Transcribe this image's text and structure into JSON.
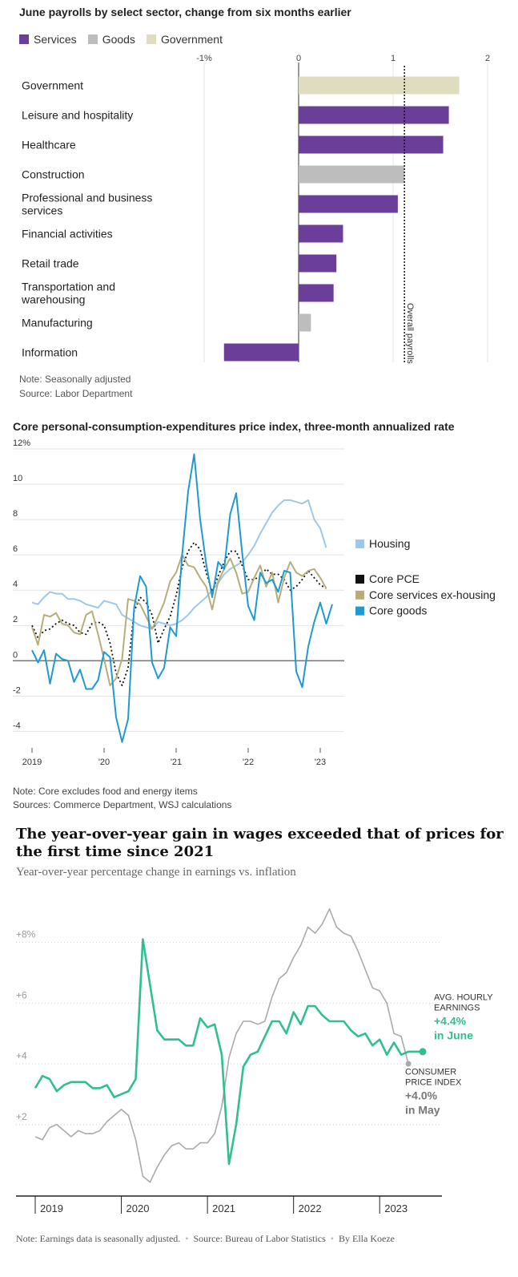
{
  "chart_data": [
    {
      "type": "bar",
      "title": "June payrolls by select sector, change from six months earlier",
      "legend": [
        {
          "name": "Services",
          "color": "#6b3f99"
        },
        {
          "name": "Goods",
          "color": "#bdbdbd"
        },
        {
          "name": "Government",
          "color": "#e0dcbf"
        }
      ],
      "x_ticks": [
        "-1%",
        "0",
        "1",
        "2"
      ],
      "xlim": [
        -1,
        2
      ],
      "categories": [
        "Government",
        "Leisure and hospitality",
        "Healthcare",
        "Construction",
        "Professional and business services",
        "Financial activities",
        "Retail trade",
        "Transportation and warehousing",
        "Manufacturing",
        "Information"
      ],
      "values": [
        1.7,
        1.59,
        1.53,
        1.12,
        1.05,
        0.47,
        0.4,
        0.37,
        0.13,
        -0.79
      ],
      "groups": [
        "Government",
        "Services",
        "Services",
        "Goods",
        "Services",
        "Services",
        "Services",
        "Services",
        "Goods",
        "Services"
      ],
      "reference_line": {
        "label": "Overall payrolls",
        "value": 1.12
      },
      "notes": [
        "Note: Seasonally adjusted",
        "Source: Labor Department"
      ]
    },
    {
      "type": "line",
      "title": "Core personal-consumption-expenditures price index, three-month annualized rate",
      "y_ticks": [
        "12%",
        "10",
        "8",
        "6",
        "4",
        "2",
        "0",
        "-2",
        "-4"
      ],
      "ylim": [
        -4.8,
        12
      ],
      "x_ticks": [
        "2019",
        "'20",
        "'21",
        "'22",
        "'23"
      ],
      "x_range": [
        "2019-01",
        "2023-05"
      ],
      "series": [
        {
          "name": "Housing",
          "color": "#9cc9e8",
          "style": "solid",
          "values": [
            3.3,
            3.2,
            3.6,
            3.9,
            3.8,
            3.8,
            3.5,
            3.5,
            3.4,
            3.2,
            3.1,
            3.0,
            3.4,
            3.3,
            3.2,
            2.6,
            2.4,
            2.2,
            2.0,
            1.9,
            1.8,
            2.2,
            2.1,
            2.0,
            2.1,
            2.3,
            2.6,
            3.0,
            3.3,
            3.6,
            4.0,
            4.4,
            4.9,
            5.2,
            5.4,
            5.6,
            6.0,
            6.5,
            7.2,
            7.8,
            8.4,
            8.8,
            9.1,
            9.1,
            9.0,
            8.9,
            9.1,
            8.0,
            7.5,
            6.4
          ]
        },
        {
          "name": "Core PCE",
          "color": "#111111",
          "style": "dotted",
          "values": [
            2.0,
            1.3,
            1.7,
            1.8,
            2.1,
            2.3,
            2.1,
            2.0,
            1.6,
            1.5,
            2.1,
            2.2,
            2.0,
            1.0,
            -0.7,
            -1.4,
            -0.4,
            2.8,
            3.6,
            3.3,
            2.6,
            1.0,
            1.8,
            2.5,
            3.7,
            5.3,
            6.2,
            6.7,
            6.3,
            5.0,
            3.9,
            4.8,
            5.6,
            6.2,
            6.2,
            5.4,
            4.6,
            4.6,
            4.8,
            5.2,
            4.9,
            4.9,
            4.6,
            4.0,
            4.2,
            4.6,
            5.1,
            4.7,
            4.3,
            4.1
          ]
        },
        {
          "name": "Core services ex-housing",
          "color": "#b5ae7a",
          "style": "solid",
          "values": [
            1.9,
            0.9,
            2.6,
            2.5,
            2.7,
            2.1,
            2.0,
            1.6,
            1.5,
            2.6,
            2.8,
            1.5,
            0.1,
            -1.4,
            -1.0,
            0.1,
            3.5,
            3.4,
            3.2,
            2.5,
            1.8,
            2.5,
            3.3,
            4.5,
            5.0,
            6.0,
            5.4,
            5.3,
            4.7,
            4.2,
            2.9,
            4.5,
            5.2,
            5.8,
            5.0,
            3.8,
            3.9,
            4.7,
            5.4,
            4.2,
            5.0,
            3.3,
            4.7,
            5.6,
            5.0,
            4.8,
            5.1,
            5.2,
            4.7,
            4.1
          ]
        },
        {
          "name": "Core goods",
          "color": "#1f9ad0",
          "style": "solid",
          "values": [
            0.6,
            -0.1,
            0.6,
            -1.3,
            0.4,
            0.1,
            0.0,
            -1.2,
            -0.5,
            -1.6,
            -1.6,
            -1.1,
            0.5,
            0.2,
            -3.2,
            -4.6,
            -3.3,
            3.0,
            4.8,
            4.2,
            -0.1,
            -1.0,
            -0.4,
            1.9,
            1.4,
            6.0,
            9.6,
            11.7,
            8.0,
            5.5,
            3.6,
            5.6,
            5.2,
            8.3,
            9.5,
            6.1,
            3.1,
            2.3,
            5.0,
            4.4,
            4.6,
            3.9,
            5.1,
            5.0,
            -0.6,
            -1.5,
            0.8,
            2.2,
            3.3,
            2.1,
            3.2
          ]
        }
      ],
      "notes": [
        "Note: Core excludes food and energy items",
        "Sources: Commerce Department, WSJ calculations"
      ]
    },
    {
      "type": "line",
      "title": "The year-over-year gain in wages exceeded that of prices for the first time since 2021",
      "subtitle": "Year-over-year percentage change in earnings vs. inflation",
      "y_ticks": [
        "+8%",
        "+6",
        "+4",
        "+2"
      ],
      "ylim": [
        -0.3,
        9.2
      ],
      "x_ticks": [
        "2019",
        "2020",
        "2021",
        "2022",
        "2023"
      ],
      "x_range": [
        "2019-01",
        "2023-06"
      ],
      "series": [
        {
          "name": "Avg. hourly earnings",
          "color": "#2fbf90",
          "values": [
            3.2,
            3.6,
            3.5,
            3.1,
            3.3,
            3.4,
            3.4,
            3.4,
            3.2,
            3.2,
            3.3,
            2.9,
            3.0,
            3.1,
            3.5,
            8.1,
            6.6,
            5.1,
            4.8,
            4.8,
            4.8,
            4.6,
            4.6,
            5.5,
            5.2,
            5.3,
            4.3,
            0.7,
            2.0,
            3.9,
            4.3,
            4.4,
            4.9,
            5.4,
            5.4,
            5.0,
            5.7,
            5.3,
            5.9,
            5.9,
            5.6,
            5.4,
            5.4,
            5.4,
            5.1,
            4.9,
            5.0,
            4.6,
            4.8,
            4.3,
            4.7,
            4.3,
            4.4,
            4.4,
            4.4
          ]
        },
        {
          "name": "Consumer price index",
          "color": "#aaaaaa",
          "values": [
            1.6,
            1.5,
            1.9,
            2.0,
            1.8,
            1.6,
            1.8,
            1.7,
            1.7,
            1.8,
            2.1,
            2.3,
            2.5,
            2.3,
            1.5,
            0.3,
            0.1,
            0.6,
            1.0,
            1.3,
            1.4,
            1.2,
            1.2,
            1.4,
            1.4,
            1.7,
            2.6,
            4.2,
            5.0,
            5.4,
            5.4,
            5.3,
            5.4,
            6.2,
            6.8,
            7.0,
            7.5,
            7.9,
            8.5,
            8.3,
            8.6,
            9.1,
            8.5,
            8.3,
            8.2,
            7.7,
            7.1,
            6.5,
            6.4,
            6.0,
            5.0,
            4.9,
            4.0
          ]
        }
      ],
      "annotations": {
        "earnings": {
          "label": "AVG. HOURLY EARNINGS",
          "value": "+4.4%",
          "when": "in June"
        },
        "cpi": {
          "label": "CONSUMER PRICE INDEX",
          "value": "+4.0%",
          "when": "in May"
        }
      },
      "footer": [
        "Note: Earnings data is seasonally adjusted.",
        "Source: Bureau of Labor Statistics",
        "By Ella Koeze"
      ]
    }
  ]
}
